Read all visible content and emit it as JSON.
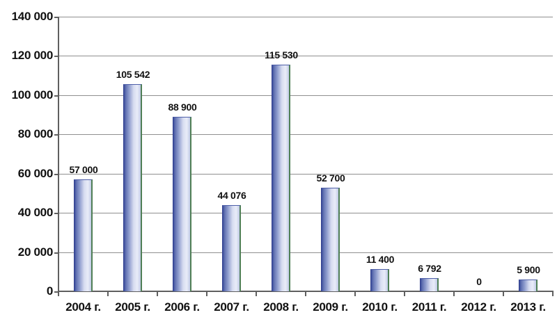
{
  "chart_data": {
    "type": "bar",
    "title": "",
    "xlabel": "",
    "ylabel": "",
    "categories": [
      "2004 г.",
      "2005 г.",
      "2006 г.",
      "2007 г.",
      "2008 г.",
      "2009 г.",
      "2010 г.",
      "2011 г.",
      "2012 г.",
      "2013 г."
    ],
    "values": [
      57000,
      105542,
      88900,
      44076,
      115530,
      52700,
      11400,
      6792,
      0,
      5900
    ],
    "value_labels": [
      "57 000",
      "105 542",
      "88 900",
      "44 076",
      "115 530",
      "52 700",
      "11 400",
      "6 792",
      "0",
      "5 900"
    ],
    "ylim": [
      0,
      140000
    ],
    "y_ticks": [
      0,
      20000,
      40000,
      60000,
      80000,
      100000,
      120000,
      140000
    ],
    "y_tick_labels": [
      "0",
      "20 000",
      "40 000",
      "60 000",
      "80 000",
      "100 000",
      "120 000",
      "140 000"
    ],
    "grid": true,
    "legend": "none",
    "bar_label_position": "outside-end"
  },
  "colors": {
    "background": "#ffffff",
    "bar_edge_dark": "#32418f",
    "bar_gradient_start": "#3b4c9b",
    "bar_gradient_mid": "#8d9bcd",
    "bar_gradient_light": "#e9ecf8",
    "bar_gradient_end": "#c2cbe7",
    "bar_border_green": "#4f7f55",
    "bar_border_top": "#4d5ea8",
    "gridline": "#8f8f8f",
    "axis": "#5f5f5f",
    "text": "#111111"
  }
}
